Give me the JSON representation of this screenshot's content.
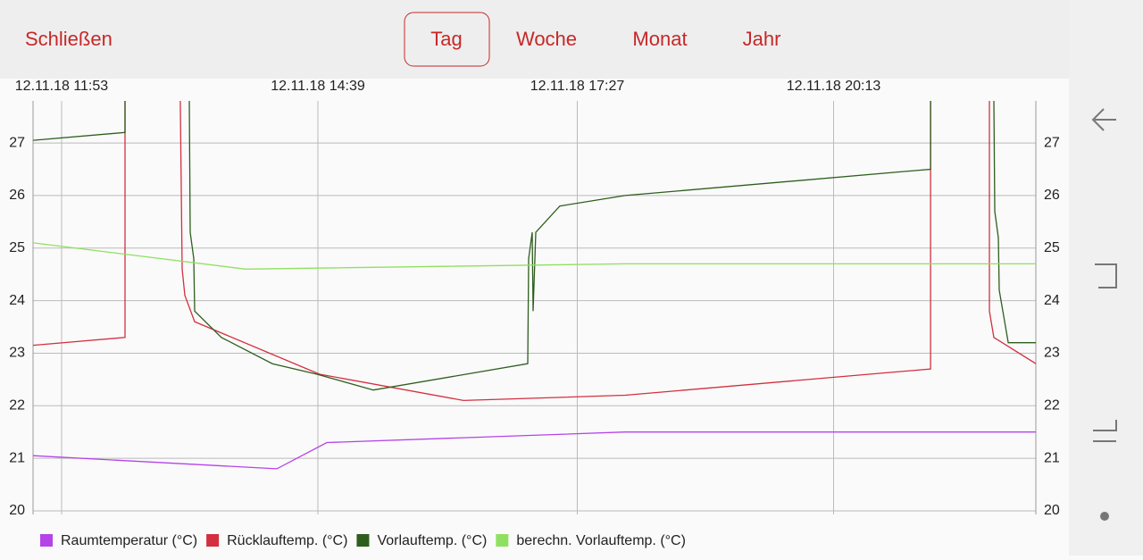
{
  "header": {
    "close": "Schließen",
    "tabs": [
      "Tag",
      "Woche",
      "Monat",
      "Jahr"
    ],
    "selected_tab": "Tag"
  },
  "chart_data": {
    "type": "line",
    "xlim": [
      694.5,
      1344
    ],
    "xticks": [
      {
        "value": 713,
        "label": "12.11.18 11:53"
      },
      {
        "value": 879,
        "label": "12.11.18 14:39"
      },
      {
        "value": 1047,
        "label": "12.11.18 17:27"
      },
      {
        "value": 1213,
        "label": "12.11.18 20:13"
      }
    ],
    "ylim": [
      20,
      27.8
    ],
    "yticks": [
      20,
      21,
      22,
      23,
      24,
      25,
      26,
      27
    ],
    "grid": true,
    "series": [
      {
        "name": "Raumtemperatur (°C)",
        "color": "#b543e8",
        "x": [
          694.5,
          852.4,
          884.8,
          1078,
          1344
        ],
        "values": [
          21.05,
          20.8,
          21.3,
          21.5,
          21.5
        ]
      },
      {
        "name": "Rücklauftemp. (°C)",
        "color": "#d32f3f",
        "x": [
          694.5,
          754.1,
          754.1,
          null,
          789.9,
          791.1,
          792.8,
          799.2,
          880.1,
          973.3,
          1078,
          1275.8,
          1275.8,
          null,
          1313.9,
          1313.9,
          1316.8,
          1344
        ],
        "values": [
          23.15,
          23.3,
          27.8,
          null,
          27.8,
          24.6,
          24.1,
          23.6,
          22.6,
          22.1,
          22.2,
          22.7,
          27.8,
          null,
          27.8,
          23.8,
          23.3,
          22.8
        ]
      },
      {
        "name": "Vorlauftemp. (°C)",
        "color": "#2e5e1e",
        "x": [
          694.5,
          754.1,
          754.1,
          null,
          795.7,
          796.3,
          798.6,
          799.2,
          816.5,
          849.5,
          878.4,
          914.9,
          1014.9,
          1015.5,
          1017.8,
          1018.4,
          1020.1,
          1035.7,
          1078,
          1275.8,
          1275.8,
          null,
          1316.8,
          1317.4,
          1319.7,
          1320.3,
          1326.1,
          1344
        ],
        "values": [
          27.05,
          27.2,
          27.8,
          null,
          27.8,
          25.3,
          24.8,
          23.8,
          23.3,
          22.8,
          22.6,
          22.3,
          22.8,
          24.8,
          25.3,
          23.8,
          25.3,
          25.8,
          26.0,
          26.5,
          27.8,
          null,
          27.8,
          25.7,
          25.2,
          24.2,
          23.2,
          23.2
        ]
      },
      {
        "name": "berechn. Vorlauftemp. (°C)",
        "color": "#90e060",
        "x": [
          694.5,
          832.1,
          1078,
          1344
        ],
        "values": [
          25.1,
          24.6,
          24.7,
          24.7
        ]
      }
    ]
  }
}
